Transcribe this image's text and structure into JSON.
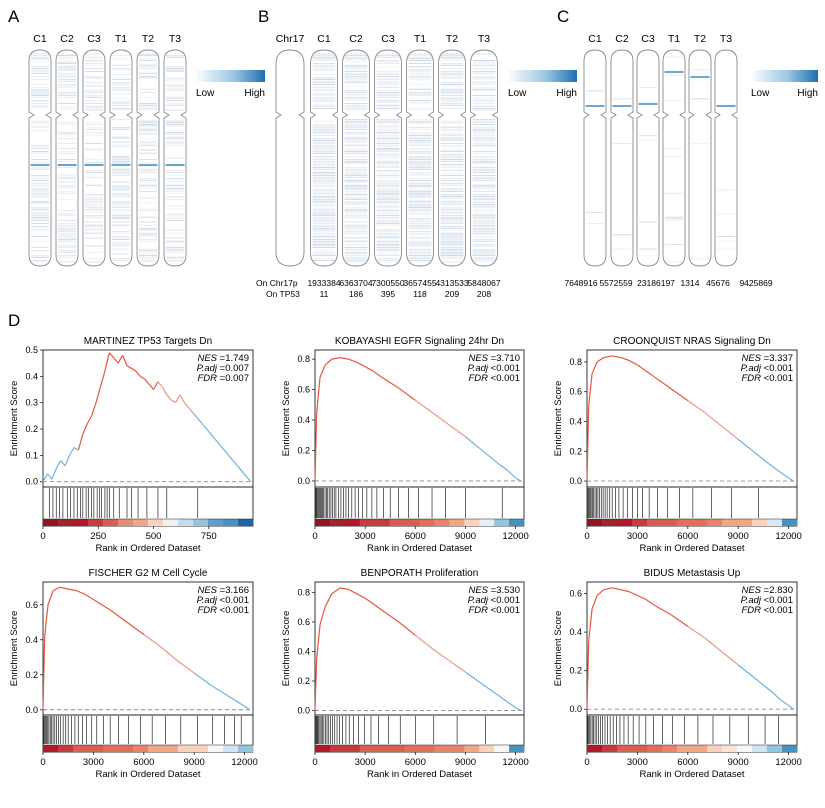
{
  "panels": {
    "A": {
      "letter": "A",
      "tracks": [
        "C1",
        "C2",
        "C3",
        "T1",
        "T2",
        "T3"
      ],
      "legend": {
        "low": "Low",
        "high": "High"
      }
    },
    "B": {
      "letter": "B",
      "tracks": [
        "Chr17",
        "C1",
        "C2",
        "C3",
        "T1",
        "T2",
        "T3"
      ],
      "legend": {
        "low": "Low",
        "high": "High"
      },
      "row_labels": [
        "On Chr17p",
        "On TP53"
      ],
      "on_chr17p": [
        "1933384",
        "6363704",
        "7300550",
        "3657455",
        "4313533",
        "5848067"
      ],
      "on_tp53": [
        "11",
        "186",
        "395",
        "118",
        "209",
        "208"
      ]
    },
    "C": {
      "letter": "C",
      "tracks": [
        "C1",
        "C2",
        "C3",
        "T1",
        "T2",
        "T3"
      ],
      "legend": {
        "low": "Low",
        "high": "High"
      },
      "counts": [
        "7648916",
        "5572559",
        "23186197",
        "1314",
        "45676",
        "9425869"
      ]
    },
    "D": {
      "letter": "D"
    }
  },
  "colors": {
    "accent_blue": "#2a78b5",
    "curve_red": "#e8553d",
    "curve_blue": "#6fb3d8",
    "dark_red": "#b2182b",
    "heat_blue": "#2166ac"
  },
  "chart_data": [
    {
      "type": "line",
      "title": "MARTINEZ TP53 Targets Dn",
      "xlabel": "Rank in Ordered Dataset",
      "ylabel": "Enrichment Score",
      "xlim": [
        0,
        950
      ],
      "ylim": [
        -0.02,
        0.5
      ],
      "xticks": [
        0,
        250,
        500,
        750
      ],
      "yticks": [
        0.0,
        0.1,
        0.2,
        0.3,
        0.4,
        0.5
      ],
      "yticklabels": [
        "0.0",
        "0.1",
        "0.2",
        "0.3",
        "0.4",
        "0.5"
      ],
      "x": [
        0,
        20,
        40,
        60,
        80,
        100,
        120,
        140,
        160,
        180,
        200,
        220,
        240,
        260,
        280,
        300,
        320,
        340,
        360,
        380,
        400,
        420,
        440,
        460,
        480,
        500,
        520,
        540,
        560,
        580,
        600,
        620,
        640,
        660,
        680,
        700,
        720,
        740,
        760,
        780,
        800,
        820,
        840,
        860,
        880,
        900,
        920,
        940
      ],
      "y": [
        0.0,
        0.03,
        0.01,
        0.05,
        0.08,
        0.06,
        0.1,
        0.13,
        0.12,
        0.18,
        0.22,
        0.25,
        0.3,
        0.36,
        0.42,
        0.49,
        0.47,
        0.45,
        0.48,
        0.44,
        0.43,
        0.42,
        0.4,
        0.39,
        0.37,
        0.35,
        0.38,
        0.36,
        0.33,
        0.31,
        0.3,
        0.33,
        0.3,
        0.28,
        0.26,
        0.24,
        0.22,
        0.2,
        0.18,
        0.16,
        0.14,
        0.12,
        0.1,
        0.08,
        0.06,
        0.04,
        0.02,
        0.0
      ],
      "peak_index": 15,
      "stats": {
        "nes": "=1.749",
        "padj": "=0.007",
        "fdr": "=0.007"
      },
      "hits": [
        30,
        45,
        60,
        75,
        90,
        110,
        125,
        140,
        155,
        170,
        180,
        195,
        205,
        220,
        230,
        245,
        255,
        265,
        280,
        290,
        300,
        320,
        345,
        380,
        400,
        430,
        470,
        520,
        560,
        700
      ],
      "heat": [
        "#8c1a24",
        "#a02330",
        "#b2182b",
        "#c43c3c",
        "#d6604d",
        "#e58c76",
        "#f4a582",
        "#fbd0bd",
        "#f0f0f0",
        "#c6dbef",
        "#92c5de",
        "#5a9fd0",
        "#4393c3",
        "#2166ac"
      ]
    },
    {
      "type": "line",
      "title": "KOBAYASHI EGFR Signaling 24hr Dn",
      "xlabel": "Rank in Ordered Dataset",
      "ylabel": "Enrichment Score",
      "xlim": [
        0,
        12500
      ],
      "ylim": [
        -0.04,
        0.86
      ],
      "xticks": [
        0,
        3000,
        6000,
        9000,
        12000
      ],
      "yticks": [
        0.0,
        0.2,
        0.4,
        0.6,
        0.8
      ],
      "yticklabels": [
        "0.0",
        "0.2",
        "0.4",
        "0.6",
        "0.8"
      ],
      "x": [
        0,
        100,
        300,
        600,
        1000,
        1500,
        2000,
        2500,
        3000,
        3500,
        4000,
        5000,
        6000,
        7000,
        8000,
        9000,
        10000,
        11000,
        11500,
        12000,
        12300
      ],
      "y": [
        0.0,
        0.45,
        0.68,
        0.76,
        0.8,
        0.81,
        0.8,
        0.78,
        0.75,
        0.72,
        0.68,
        0.61,
        0.53,
        0.45,
        0.37,
        0.29,
        0.2,
        0.11,
        0.07,
        0.02,
        0.0
      ],
      "peak_index": 5,
      "stats": {
        "nes": "=3.710",
        "padj": "<0.001",
        "fdr": "<0.001"
      },
      "hits": [
        20,
        60,
        100,
        150,
        200,
        260,
        320,
        380,
        450,
        520,
        600,
        680,
        760,
        850,
        950,
        1050,
        1150,
        1250,
        1400,
        1550,
        1700,
        1850,
        2000,
        2200,
        2400,
        2600,
        2850,
        3100,
        3400,
        3700,
        4100,
        4500,
        5000,
        5600,
        6200,
        7000,
        7800,
        9000,
        11200
      ],
      "heat": [
        "#8c1a24",
        "#a02330",
        "#b2182b",
        "#c43c3c",
        "#c43c3c",
        "#d6604d",
        "#d6604d",
        "#e0705a",
        "#e8836b",
        "#f4a582",
        "#fbd0bd",
        "#e8eef5",
        "#92c5de",
        "#4393c3"
      ]
    },
    {
      "type": "line",
      "title": "CROONQUIST NRAS Signaling Dn",
      "xlabel": "Rank in Ordered Dataset",
      "ylabel": "Enrichment Score",
      "xlim": [
        0,
        12500
      ],
      "ylim": [
        -0.04,
        0.88
      ],
      "xticks": [
        0,
        3000,
        6000,
        9000,
        12000
      ],
      "yticks": [
        0.0,
        0.2,
        0.4,
        0.6,
        0.8
      ],
      "yticklabels": [
        "0.0",
        "0.2",
        "0.4",
        "0.6",
        "0.8"
      ],
      "x": [
        0,
        100,
        300,
        600,
        1000,
        1500,
        2000,
        2500,
        3000,
        3500,
        4000,
        5000,
        6000,
        7000,
        8000,
        9000,
        10000,
        11000,
        11500,
        12000,
        12300
      ],
      "y": [
        0.0,
        0.5,
        0.72,
        0.8,
        0.83,
        0.84,
        0.83,
        0.81,
        0.78,
        0.74,
        0.7,
        0.62,
        0.54,
        0.46,
        0.37,
        0.28,
        0.19,
        0.1,
        0.06,
        0.02,
        0.0
      ],
      "peak_index": 5,
      "stats": {
        "nes": "=3.337",
        "padj": "<0.001",
        "fdr": "<0.001"
      },
      "hits": [
        30,
        80,
        130,
        190,
        250,
        320,
        400,
        480,
        560,
        650,
        750,
        850,
        960,
        1080,
        1200,
        1350,
        1500,
        1700,
        1900,
        2150,
        2400,
        2700,
        3000,
        3300,
        3700,
        4200,
        4800,
        5500,
        6300,
        7400,
        8600,
        10200
      ],
      "heat": [
        "#8c1a24",
        "#a02330",
        "#b2182b",
        "#c43c3c",
        "#d6604d",
        "#d6604d",
        "#e0705a",
        "#e0705a",
        "#e8836b",
        "#f4a582",
        "#f4a582",
        "#fbd0bd",
        "#dde8f2",
        "#4393c3"
      ]
    },
    {
      "type": "line",
      "title": "FISCHER G2 M Cell Cycle",
      "xlabel": "Rank in Ordered Dataset",
      "ylabel": "Enrichment Score",
      "xlim": [
        0,
        12500
      ],
      "ylim": [
        -0.03,
        0.73
      ],
      "xticks": [
        0,
        3000,
        6000,
        9000,
        12000
      ],
      "yticks": [
        0.0,
        0.2,
        0.4,
        0.6
      ],
      "yticklabels": [
        "0.0",
        "0.2",
        "0.4",
        "0.6"
      ],
      "x": [
        0,
        100,
        300,
        600,
        1000,
        1500,
        2000,
        2500,
        3000,
        3500,
        4000,
        5000,
        6000,
        7000,
        8000,
        9000,
        10000,
        11000,
        11500,
        12000,
        12300
      ],
      "y": [
        0.0,
        0.42,
        0.6,
        0.68,
        0.7,
        0.69,
        0.68,
        0.66,
        0.63,
        0.6,
        0.57,
        0.5,
        0.43,
        0.36,
        0.28,
        0.21,
        0.14,
        0.08,
        0.05,
        0.02,
        0.0
      ],
      "peak_index": 4,
      "stats": {
        "nes": "=3.166",
        "padj": "<0.001",
        "fdr": "<0.001"
      },
      "hits": [
        40,
        90,
        150,
        210,
        280,
        350,
        430,
        510,
        600,
        700,
        800,
        920,
        1050,
        1200,
        1350,
        1500,
        1700,
        1900,
        2100,
        2350,
        2600,
        2900,
        3200,
        3600,
        4000,
        4500,
        5100,
        5800,
        6500,
        7300,
        8200,
        9200,
        10100,
        10800,
        11400,
        11800
      ],
      "heat": [
        "#b2182b",
        "#c43c3c",
        "#d6604d",
        "#d6604d",
        "#e0705a",
        "#e0705a",
        "#e8836b",
        "#f4a582",
        "#f4a582",
        "#fbd0bd",
        "#fbd0bd",
        "#f7f7f7",
        "#d1e5f0",
        "#92c5de"
      ]
    },
    {
      "type": "line",
      "title": "BENPORATH Proliferation",
      "xlabel": "Rank in Ordered Dataset",
      "ylabel": "Enrichment Score",
      "xlim": [
        0,
        12500
      ],
      "ylim": [
        -0.03,
        0.87
      ],
      "xticks": [
        0,
        3000,
        6000,
        9000,
        12000
      ],
      "yticks": [
        0.0,
        0.2,
        0.4,
        0.6,
        0.8
      ],
      "yticklabels": [
        "0.0",
        "0.2",
        "0.4",
        "0.6",
        "0.8"
      ],
      "x": [
        0,
        100,
        300,
        600,
        1000,
        1500,
        2000,
        2500,
        3000,
        3500,
        4000,
        5000,
        6000,
        7000,
        8000,
        9000,
        10000,
        11000,
        11500,
        12000,
        12300
      ],
      "y": [
        0.0,
        0.35,
        0.58,
        0.7,
        0.79,
        0.83,
        0.82,
        0.79,
        0.76,
        0.72,
        0.68,
        0.6,
        0.51,
        0.42,
        0.34,
        0.26,
        0.18,
        0.1,
        0.06,
        0.02,
        0.0
      ],
      "peak_index": 5,
      "stats": {
        "nes": "=3.530",
        "padj": "<0.001",
        "fdr": "<0.001"
      },
      "hits": [
        30,
        70,
        120,
        170,
        230,
        300,
        370,
        450,
        530,
        620,
        720,
        820,
        930,
        1050,
        1180,
        1320,
        1470,
        1650,
        1850,
        2050,
        2300,
        2600,
        2950,
        3350,
        3800,
        4400,
        5100,
        6000,
        7100,
        8500,
        10200
      ],
      "heat": [
        "#b2182b",
        "#c43c3c",
        "#c43c3c",
        "#d6604d",
        "#d6604d",
        "#d6604d",
        "#e0705a",
        "#e0705a",
        "#e8836b",
        "#e8836b",
        "#f4a582",
        "#fbd0bd",
        "#f7f7f7",
        "#4393c3"
      ]
    },
    {
      "type": "line",
      "title": "BIDUS Metastasis Up",
      "xlabel": "Rank in Ordered Dataset",
      "ylabel": "Enrichment Score",
      "xlim": [
        0,
        12500
      ],
      "ylim": [
        -0.03,
        0.66
      ],
      "xticks": [
        0,
        3000,
        6000,
        9000,
        12000
      ],
      "yticks": [
        0.0,
        0.2,
        0.4,
        0.6
      ],
      "yticklabels": [
        "0.0",
        "0.2",
        "0.4",
        "0.6"
      ],
      "x": [
        0,
        100,
        300,
        600,
        1000,
        1500,
        2000,
        2500,
        3000,
        3500,
        4000,
        5000,
        6000,
        7000,
        8000,
        9000,
        10000,
        11000,
        11500,
        12000,
        12300
      ],
      "y": [
        0.0,
        0.35,
        0.52,
        0.59,
        0.62,
        0.63,
        0.62,
        0.61,
        0.59,
        0.57,
        0.54,
        0.49,
        0.43,
        0.37,
        0.3,
        0.23,
        0.16,
        0.09,
        0.05,
        0.02,
        0.0
      ],
      "peak_index": 5,
      "stats": {
        "nes": "=2.830",
        "padj": "<0.001",
        "fdr": "<0.001"
      },
      "hits": [
        40,
        100,
        160,
        230,
        310,
        390,
        480,
        580,
        690,
        800,
        930,
        1070,
        1220,
        1380,
        1560,
        1750,
        1960,
        2200,
        2450,
        2750,
        3100,
        3500,
        3950,
        4500,
        5100,
        5800,
        6600,
        7500,
        8500,
        9600,
        10600,
        11400
      ],
      "heat": [
        "#b2182b",
        "#c43c3c",
        "#d6604d",
        "#d6604d",
        "#e0705a",
        "#e8836b",
        "#f4a582",
        "#f4a582",
        "#fbd0bd",
        "#fbe3d6",
        "#f7f7f7",
        "#d1e5f0",
        "#92c5de",
        "#4393c3"
      ]
    }
  ]
}
